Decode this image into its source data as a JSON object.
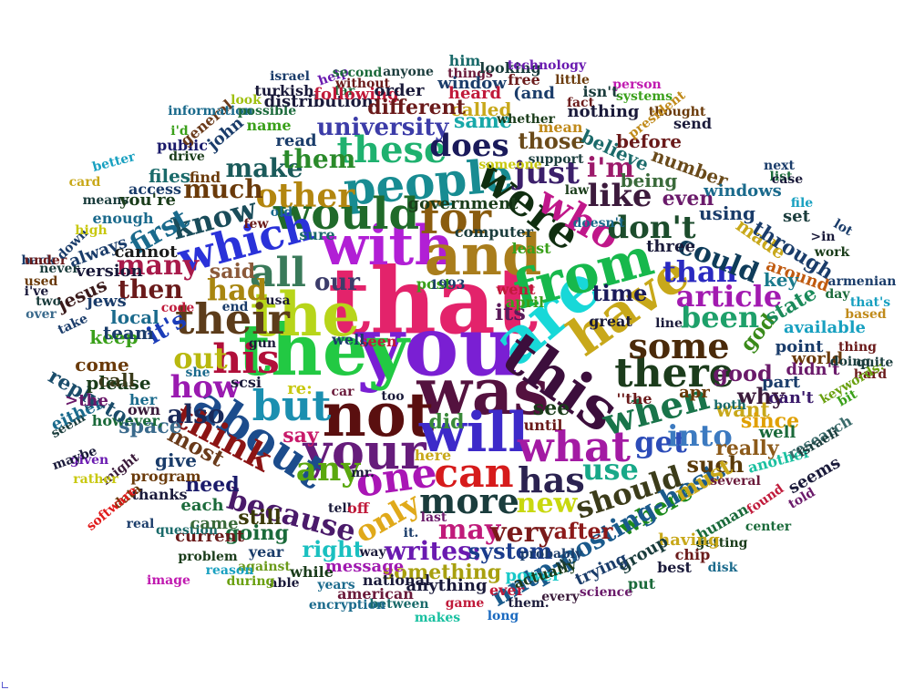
{
  "cloud": {
    "words": [
      {
        "t": "that",
        "c": "#e3236b"
      },
      {
        "t": "you",
        "c": "#7a1fd3"
      },
      {
        "t": "was",
        "c": "#54123f"
      },
      {
        "t": "they",
        "c": "#22c943"
      },
      {
        "t": "the",
        "c": "#b7d51a"
      },
      {
        "t": "not",
        "c": "#5a0f0f"
      },
      {
        "t": "are",
        "c": "#18d8d8"
      },
      {
        "t": "with",
        "c": "#b11fd5"
      },
      {
        "t": "and",
        "c": "#a97d1c"
      },
      {
        "t": "from",
        "c": "#17b84c"
      },
      {
        "t": "will",
        "c": "#3d2ac9"
      },
      {
        "t": "this",
        "c": "#3c0e3c"
      },
      {
        "t": "have",
        "c": "#c8a81a"
      },
      {
        "t": "your",
        "c": "#661c7b"
      },
      {
        "t": "people",
        "c": "#188c92"
      },
      {
        "t": "would",
        "c": "#206a2a"
      },
      {
        "t": "for",
        "c": "#8a5c0f"
      },
      {
        "t": "were",
        "c": "#102e10"
      },
      {
        "t": "who",
        "c": "#c0178a"
      },
      {
        "t": "which",
        "c": "#2a32d9"
      },
      {
        "t": "all",
        "c": "#3a7a5a"
      },
      {
        "t": "their",
        "c": "#5c3c1a"
      },
      {
        "t": "his",
        "c": "#b10f3a"
      },
      {
        "t": "but",
        "c": "#1b8fb0"
      },
      {
        "t": "about",
        "c": "#1c4c8c"
      },
      {
        "t": "can",
        "c": "#d61b1b"
      },
      {
        "t": "one",
        "c": "#a916b5"
      },
      {
        "t": "what",
        "c": "#a31aa3"
      },
      {
        "t": "has",
        "c": "#2b2250"
      },
      {
        "t": "there",
        "c": "#1c3c1c"
      },
      {
        "t": "some",
        "c": "#4a2a0a"
      },
      {
        "t": "when",
        "c": "#19744a"
      },
      {
        "t": "more",
        "c": "#1a3c3c"
      },
      {
        "t": "only",
        "c": "#e0a91a"
      },
      {
        "t": "any",
        "c": "#5aa80f"
      },
      {
        "t": "because",
        "c": "#4a1a6a"
      },
      {
        "t": "think",
        "c": "#8c1414"
      },
      {
        "t": "should",
        "c": "#3c3c1a"
      },
      {
        "t": "these",
        "c": "#1fb16f"
      },
      {
        "t": "other",
        "c": "#b3860f"
      },
      {
        "t": "does",
        "c": "#1a1a5a"
      },
      {
        "t": "just",
        "c": "#3b1f6a"
      },
      {
        "t": "don't",
        "c": "#1c4c2c"
      },
      {
        "t": "like",
        "c": "#3c1a3c"
      },
      {
        "t": "i'm",
        "c": "#9c1a6a"
      },
      {
        "t": "than",
        "c": "#2a2ac0"
      },
      {
        "t": "could",
        "c": "#0f3c5a"
      },
      {
        "t": "been",
        "c": "#1ea06a"
      },
      {
        "t": "article",
        "c": "#a21ab0"
      },
      {
        "t": "get",
        "c": "#2c4cb8"
      },
      {
        "t": "into",
        "c": "#3c7ac0"
      },
      {
        "t": "use",
        "c": "#18a888"
      },
      {
        "t": "new",
        "c": "#c8d80f"
      },
      {
        "t": "may",
        "c": "#c01a7a"
      },
      {
        "t": "very",
        "c": "#7a1a1a"
      },
      {
        "t": "writes:",
        "c": "#6a1ab0"
      },
      {
        "t": "right",
        "c": "#1ac0c0"
      },
      {
        "t": "system",
        "c": "#1a3c8c"
      },
      {
        "t": "where",
        "c": "#1c8a1c"
      },
      {
        "t": "nntp-posting-host:",
        "c": "#1a5a8c"
      },
      {
        "t": "after",
        "c": "#8c1a1a"
      },
      {
        "t": "how",
        "c": "#9a1ab0"
      },
      {
        "t": "also",
        "c": "#1a2a5a"
      },
      {
        "t": "out",
        "c": "#b8b80f"
      },
      {
        "t": "it's",
        "c": "#1a3cb8"
      },
      {
        "t": "had",
        "c": "#a8860f"
      },
      {
        "t": "then",
        "c": "#6a1a1a"
      },
      {
        "t": "many",
        "c": "#a81a4a"
      },
      {
        "t": "know",
        "c": "#1a4c5a"
      },
      {
        "t": "first",
        "c": "#1a6a8c"
      },
      {
        "t": "make",
        "c": "#1a5a5a"
      },
      {
        "t": "them",
        "c": "#2a8a2a"
      },
      {
        "t": "much",
        "c": "#6a3a0a"
      },
      {
        "t": "our",
        "c": "#3c3c6a"
      },
      {
        "t": "its",
        "c": "#5a1a5a"
      },
      {
        "t": "time",
        "c": "#1a1a5a"
      },
      {
        "t": "good",
        "c": "#6a1a6a"
      },
      {
        "t": "why",
        "c": "#3a1a3a"
      },
      {
        "t": "such",
        "c": "#5a3a0a"
      },
      {
        "t": "must",
        "c": "#c8a81a"
      },
      {
        "t": "really",
        "c": "#8c5a1a"
      },
      {
        "t": "want",
        "c": "#c8a81a"
      },
      {
        "t": "since",
        "c": "#e0a000"
      },
      {
        "t": "said",
        "c": "#8c5a3a"
      },
      {
        "t": "say",
        "c": "#c81a6a"
      },
      {
        "t": "did",
        "c": "#3a8a3a"
      },
      {
        "t": "see",
        "c": "#1a3c1a"
      },
      {
        "t": "need",
        "c": "#1a1a6a"
      },
      {
        "t": "most",
        "c": "#6a3a1a"
      },
      {
        "t": "space",
        "c": "#3a6a8c"
      },
      {
        "t": "going",
        "c": "#1a6a3a"
      },
      {
        "t": "still",
        "c": "#3a3a0a"
      },
      {
        "t": "something",
        "c": "#a8a00f"
      },
      {
        "t": "power",
        "c": "#18c8c8"
      },
      {
        "t": "university",
        "c": "#3c3ca8"
      },
      {
        "t": "those",
        "c": "#6a4a1a"
      },
      {
        "t": "same",
        "c": "#18a8a8"
      },
      {
        "t": "believe",
        "c": "#1a6a6a"
      },
      {
        "t": "being",
        "c": "#3a6a3a"
      },
      {
        "t": "even",
        "c": "#6a1a6a"
      },
      {
        "t": "number",
        "c": "#6a4a1a"
      },
      {
        "t": "before",
        "c": "#6a1a1a"
      },
      {
        "t": "using",
        "c": "#1a3c6a"
      },
      {
        "t": "windows",
        "c": "#1a6a8c"
      },
      {
        "t": "made",
        "c": "#c8a81a"
      },
      {
        "t": "through",
        "c": "#1a3c6a"
      },
      {
        "t": "around",
        "c": "#c05a0f"
      },
      {
        "t": "key",
        "c": "#1a7a8c"
      },
      {
        "t": "god",
        "c": "#3a8a1a"
      },
      {
        "t": "state",
        "c": "#1a8a5a"
      },
      {
        "t": "available",
        "c": "#18a0c0"
      },
      {
        "t": "point",
        "c": "#1a3c6a"
      },
      {
        "t": "world",
        "c": "#6a3a0a"
      },
      {
        "t": "didn't",
        "c": "#6a1a6a"
      },
      {
        "t": "part",
        "c": "#1a3c6a"
      },
      {
        "t": "can't",
        "c": "#3a1a6a"
      },
      {
        "t": "well",
        "c": "#1a6a3a"
      },
      {
        "t": "another",
        "c": "#1ac0a0"
      },
      {
        "t": "research",
        "c": "#3a6a6a"
      },
      {
        "t": "seems",
        "c": "#1a1a3a"
      },
      {
        "t": "several",
        "c": "#6a1a3a"
      },
      {
        "t": "found",
        "c": "#c01a3a"
      },
      {
        "t": "told",
        "c": "#6a1a6a"
      },
      {
        "t": "center",
        "c": "#1a6a3a"
      },
      {
        "t": "human",
        "c": "#1a6a3a"
      },
      {
        "t": "getting",
        "c": "#1a3c1a"
      },
      {
        "t": "having",
        "c": "#c8a81a"
      },
      {
        "t": "chip",
        "c": "#6a1a1a"
      },
      {
        "t": "best",
        "c": "#1a1a3a"
      },
      {
        "t": "group",
        "c": "#1a3c3c"
      },
      {
        "t": "trying",
        "c": "#1a3c6a"
      },
      {
        "t": "put",
        "c": "#1a6a3a"
      },
      {
        "t": "probably",
        "c": "#1a3c6a"
      },
      {
        "t": "actually",
        "c": "#1a3c1a"
      },
      {
        "t": "every",
        "c": "#3a1a3a"
      },
      {
        "t": "science",
        "c": "#6a1a6a"
      },
      {
        "t": "them.",
        "c": "#1a1a3a"
      },
      {
        "t": "ever",
        "c": "#c01a3a"
      },
      {
        "t": "game",
        "c": "#c01a3a"
      },
      {
        "t": "long",
        "c": "#1a6ac0"
      },
      {
        "t": "anything",
        "c": "#1a1a3a"
      },
      {
        "t": "makes",
        "c": "#18c0a0"
      },
      {
        "t": "between",
        "c": "#1a6a6a"
      },
      {
        "t": "american",
        "c": "#6a1a3a"
      },
      {
        "t": "encryption",
        "c": "#1a6a8c"
      },
      {
        "t": "national",
        "c": "#1a1a3a"
      },
      {
        "t": "message",
        "c": "#a01ab0"
      },
      {
        "t": "years",
        "c": "#1a6a8c"
      },
      {
        "t": "while",
        "c": "#1a3c1a"
      },
      {
        "t": "able",
        "c": "#1a1a3a"
      },
      {
        "t": "against",
        "c": "#6a9a1a"
      },
      {
        "t": "during",
        "c": "#6aa00f"
      },
      {
        "t": "year",
        "c": "#1a3c6a"
      },
      {
        "t": "reason",
        "c": "#18a0c0"
      },
      {
        "t": "problem",
        "c": "#1a3c1a"
      },
      {
        "t": "current",
        "c": "#6a1a1a"
      },
      {
        "t": "image",
        "c": "#c01ab0"
      },
      {
        "t": "question",
        "c": "#1a6a6a"
      },
      {
        "t": "came",
        "c": "#3a6a3a"
      },
      {
        "t": "real",
        "c": "#1a3c6a"
      },
      {
        "t": "each",
        "c": "#1a6a3a"
      },
      {
        "t": "thanks",
        "c": "#1a1a3a"
      },
      {
        "t": "program",
        "c": "#6a3a0a"
      },
      {
        "t": "give",
        "c": "#1a3c6a"
      },
      {
        "t": "might",
        "c": "#3a1a3a"
      },
      {
        "t": "data",
        "c": "#6a3a0a"
      },
      {
        "t": "software",
        "c": "#e01a1a"
      },
      {
        "t": "rather",
        "c": "#c8c80f"
      },
      {
        "t": "given",
        "c": "#6a1ab0"
      },
      {
        "t": "maybe",
        "c": "#1a1a3a"
      },
      {
        "t": "seem",
        "c": "#1a3c3c"
      },
      {
        "t": "either",
        "c": "#1a6a8c"
      },
      {
        "t": "however,",
        "c": "#1a6a3a"
      },
      {
        "t": "reply-to:",
        "c": "#1a4c6a"
      },
      {
        "t": ">the",
        "c": "#6a1a6a"
      },
      {
        "t": "her",
        "c": "#1a6a8c"
      },
      {
        "t": "please",
        "c": "#1a3c1a"
      },
      {
        "t": "own",
        "c": "#3a1a3a"
      },
      {
        "t": "call",
        "c": "#3a3a1a"
      },
      {
        "t": "come",
        "c": "#6a3a0a"
      },
      {
        "t": "keep",
        "c": "#3aa01a"
      },
      {
        "t": "team",
        "c": "#1a3c6a"
      },
      {
        "t": "local",
        "c": "#1a6a8c"
      },
      {
        "t": "jews",
        "c": "#1a3c6a"
      },
      {
        "t": "jesus",
        "c": "#3a1a1a"
      },
      {
        "t": "take",
        "c": "#1a3c6a"
      },
      {
        "t": "over",
        "c": "#3a6a8c"
      },
      {
        "t": "two",
        "c": "#1a3c3c"
      },
      {
        "t": "i've",
        "c": "#1a1a3a"
      },
      {
        "t": "used",
        "c": "#6a3a0a"
      },
      {
        "t": "back",
        "c": "#1a3c6a"
      },
      {
        "t": "never",
        "c": "#1a3c3c"
      },
      {
        "t": "under",
        "c": "#6a1a1a"
      },
      {
        "t": "down",
        "c": "#1a3c6a"
      },
      {
        "t": "high",
        "c": "#c8c80f"
      },
      {
        "t": "always",
        "c": "#1a3c6a"
      },
      {
        "t": "version",
        "c": "#1a1a3a"
      },
      {
        "t": "cannot",
        "c": "#1a1a1a"
      },
      {
        "t": "code",
        "c": "#c01a3a"
      },
      {
        "t": "enough",
        "c": "#1a6a8c"
      },
      {
        "t": "means",
        "c": "#1a3c3c"
      },
      {
        "t": "card",
        "c": "#c8a81a"
      },
      {
        "t": "you're",
        "c": "#1a3c1a"
      },
      {
        "t": "access",
        "c": "#1a3c6a"
      },
      {
        "t": "better",
        "c": "#18a0c0"
      },
      {
        "t": "drive",
        "c": "#1a3c1a"
      },
      {
        "t": "find",
        "c": "#6a3a0a"
      },
      {
        "t": "files",
        "c": "#1a6a6a"
      },
      {
        "t": "public",
        "c": "#1a1a6a"
      },
      {
        "t": "i'd",
        "c": "#3aa01a"
      },
      {
        "t": "john",
        "c": "#1a3c6a"
      },
      {
        "t": "general",
        "c": "#6a3a1a"
      },
      {
        "t": "information",
        "c": "#1a6a8c"
      },
      {
        "t": "look",
        "c": "#a0c00f"
      },
      {
        "t": "possible",
        "c": "#1a6a3a"
      },
      {
        "t": "name",
        "c": "#3aa01a"
      },
      {
        "t": "read",
        "c": "#1a3c6a"
      },
      {
        "t": "distribution:",
        "c": "#1a1a3a"
      },
      {
        "t": "turkish",
        "c": "#1a1a3a"
      },
      {
        "t": "israel",
        "c": "#1a3c6a"
      },
      {
        "t": "help",
        "c": "#6a1ab0"
      },
      {
        "t": "far",
        "c": "#1a6a3a"
      },
      {
        "t": "following",
        "c": "#c01a3a"
      },
      {
        "t": "order",
        "c": "#1a1a3a"
      },
      {
        "t": "second",
        "c": "#1a6a3a"
      },
      {
        "t": "without",
        "c": "#6a1a1a"
      },
      {
        "t": "anyone",
        "c": "#1a3c3c"
      },
      {
        "t": "him",
        "c": "#1a6a6a"
      },
      {
        "t": "things",
        "c": "#6a1a3a"
      },
      {
        "t": "looking",
        "c": "#1a3c3c"
      },
      {
        "t": "technology",
        "c": "#6a1ab0"
      },
      {
        "t": "free",
        "c": "#6a1a1a"
      },
      {
        "t": "window",
        "c": "#1a3c6a"
      },
      {
        "t": "little",
        "c": "#6a3a0a"
      },
      {
        "t": "person",
        "c": "#c01ab0"
      },
      {
        "t": "fact",
        "c": "#6a1a1a"
      },
      {
        "t": "systems",
        "c": "#3aa01a"
      },
      {
        "t": "thought",
        "c": "#6a3a0a"
      },
      {
        "t": "isn't",
        "c": "#1a3c3c"
      },
      {
        "t": "heard",
        "c": "#c01a3a"
      },
      {
        "t": "(and",
        "c": "#1a3c6a"
      },
      {
        "t": "called",
        "c": "#c8a81a"
      },
      {
        "t": "different",
        "c": "#6a1a1a"
      },
      {
        "t": "nothing",
        "c": "#1a1a3a"
      },
      {
        "t": "president",
        "c": "#c08a1a"
      },
      {
        "t": "send",
        "c": "#1a1a3a"
      },
      {
        "t": "whether",
        "c": "#1a3c1a"
      },
      {
        "t": "mean",
        "c": "#c08a1a"
      },
      {
        "t": "support",
        "c": "#1a3c3c"
      },
      {
        "t": "someone",
        "c": "#c8c80f"
      },
      {
        "t": "law",
        "c": "#1a3c1a"
      },
      {
        "t": "government",
        "c": "#1a3c1a"
      },
      {
        "t": "computer",
        "c": "#1a3c3c"
      },
      {
        "t": "doesn't",
        "c": "#1a6a8c"
      },
      {
        "t": "least",
        "c": "#3aa01a"
      },
      {
        "t": "three",
        "c": "#1a1a3a"
      },
      {
        "t": "apr",
        "c": "#6a3a0a"
      },
      {
        "t": "both",
        "c": "#1a6a6a"
      },
      {
        "t": "next",
        "c": "#1a3c6a"
      },
      {
        "t": "list",
        "c": "#1a6a3a"
      },
      {
        "t": "case",
        "c": "#1a1a3a"
      },
      {
        "t": "file",
        "c": "#18a0c0"
      },
      {
        "t": "set",
        "c": "#1a3c3c"
      },
      {
        "t": "lot",
        "c": "#1a3c6a"
      },
      {
        "t": ">in",
        "c": "#1a1a3a"
      },
      {
        "t": "work",
        "c": "#1a3c1a"
      },
      {
        "t": "armenian",
        "c": "#1a3c6a"
      },
      {
        "t": "day",
        "c": "#1a6a3a"
      },
      {
        "t": "that's",
        "c": "#18a0c0"
      },
      {
        "t": "based",
        "c": "#c08a1a"
      },
      {
        "t": "thing",
        "c": "#6a1a1a"
      },
      {
        "t": "doing",
        "c": "#1a3c3c"
      },
      {
        "t": "quite",
        "c": "#1a3c3c"
      },
      {
        "t": "hard",
        "c": "#6a1a1a"
      },
      {
        "t": "keywords:",
        "c": "#6aa00f"
      },
      {
        "t": "bit",
        "c": "#3aa01a"
      },
      {
        "t": "israeli",
        "c": "#1a3c3c"
      },
      {
        "t": "post",
        "c": "#3aa01a"
      },
      {
        "t": "1993",
        "c": "#1a3c6a"
      },
      {
        "t": "went",
        "c": "#c01a3a"
      },
      {
        "t": "april",
        "c": "#3aa01a"
      },
      {
        "t": "great",
        "c": "#1a1a3a"
      },
      {
        "t": "line",
        "c": "#1a1a3a"
      },
      {
        "t": "''the",
        "c": "#6a1a1a"
      },
      {
        "t": "until",
        "c": "#6a1a1a"
      },
      {
        "t": "seen",
        "c": "#c01a3a"
      },
      {
        "t": "well,",
        "c": "#1a3c6a"
      },
      {
        "t": "here",
        "c": "#c8a81a"
      },
      {
        "t": "car",
        "c": "#6a1a3a"
      },
      {
        "t": "too",
        "c": "#1a1a3a"
      },
      {
        "t": "re:",
        "c": "#c8c80f"
      },
      {
        "t": "mr.",
        "c": "#1a1a3a"
      },
      {
        "t": "tell",
        "c": "#1a1a3a"
      },
      {
        "t": "off",
        "c": "#c01a3a"
      },
      {
        "t": "last",
        "c": "#6a1a6a"
      },
      {
        "t": "it.",
        "c": "#1a3c6a"
      },
      {
        "t": "way",
        "c": "#1a1a3a"
      },
      {
        "t": "it,",
        "c": "#1a3c3c"
      },
      {
        "t": "usa",
        "c": "#1a1a3a"
      },
      {
        "t": "old",
        "c": "#1a6a8c"
      },
      {
        "t": "sure",
        "c": "#1a6a6a"
      },
      {
        "t": "end",
        "c": "#1a3c6a"
      },
      {
        "t": "scsi",
        "c": "#1a1a3a"
      },
      {
        "t": "she",
        "c": "#1a6a8c"
      },
      {
        "t": "gun",
        "c": "#1a1a3a"
      },
      {
        "t": "few",
        "c": "#6a1a1a"
      },
      {
        "t": "disk",
        "c": "#1a6a8c"
      },
      {
        "t": "mc",
        "c": "#1a3c6a"
      },
      {
        "t": "try",
        "c": "#6a1a1a"
      },
      {
        "t": "let",
        "c": "#6a1a1a"
      },
      {
        "t": "now",
        "c": "#1a3c3c"
      },
      {
        "t": "run",
        "c": "#6a1a1a"
      },
      {
        "t": "got",
        "c": "#1a1a3a"
      },
      {
        "t": "dos",
        "c": "#6a1a1a"
      },
      {
        "t": "less",
        "c": "#1a6a8c"
      },
      {
        "t": "big",
        "c": "#1a1a3a"
      },
      {
        "t": "i'll",
        "c": "#1a1a3a"
      }
    ]
  }
}
